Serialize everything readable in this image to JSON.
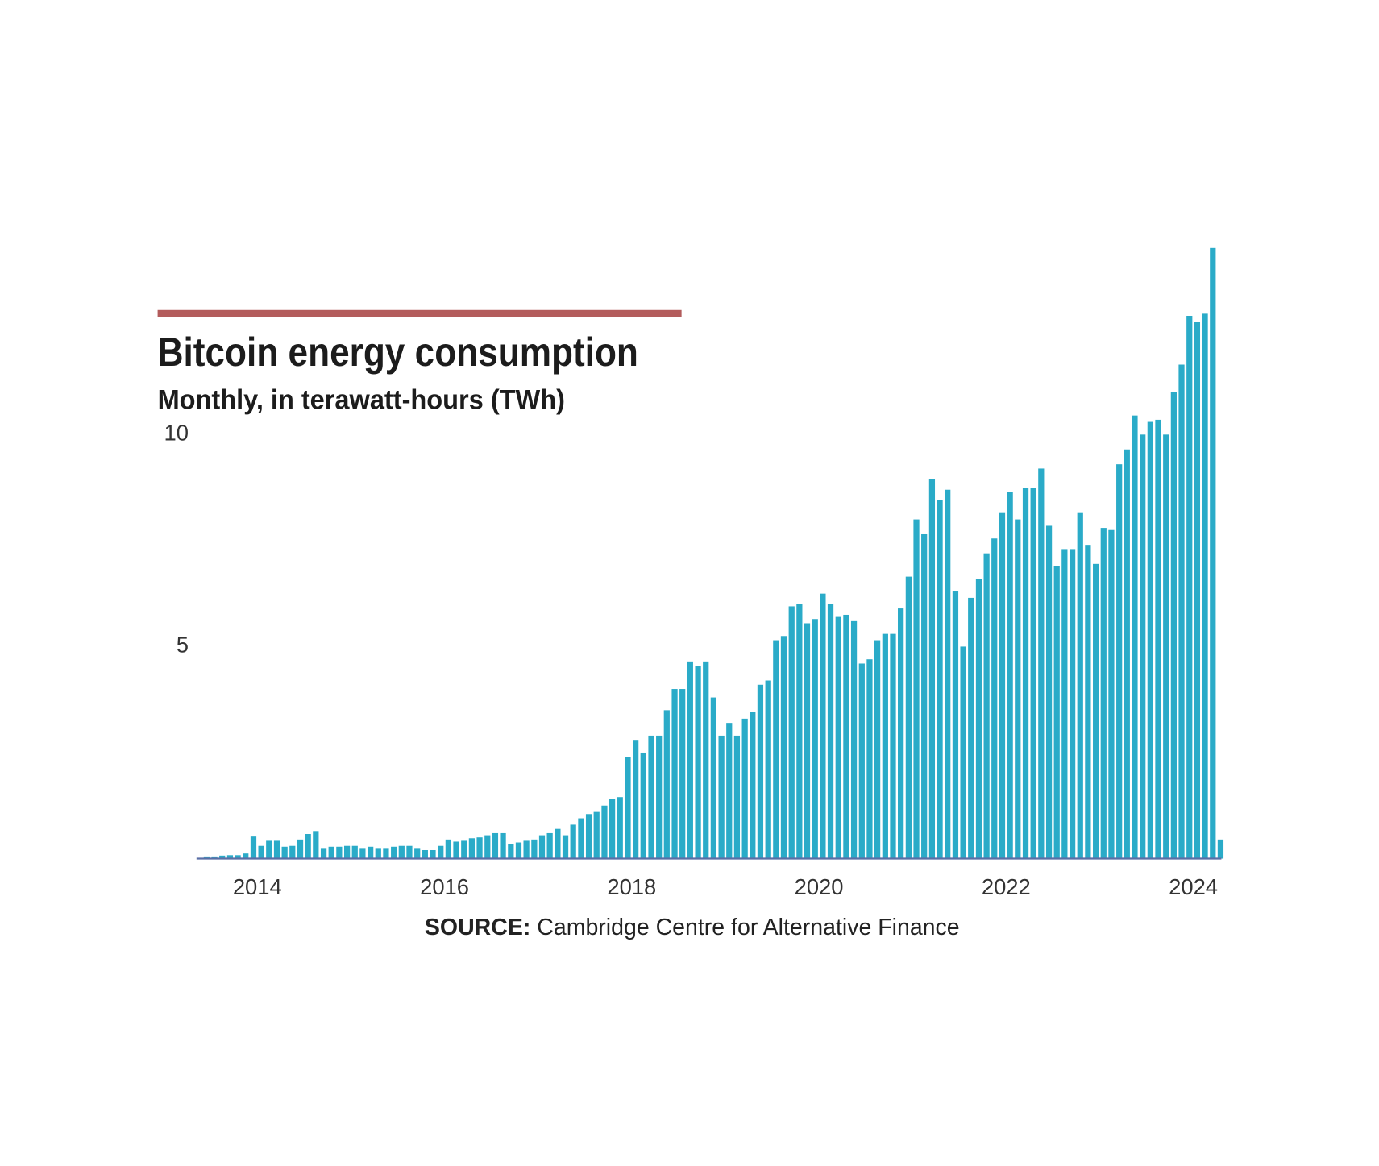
{
  "chart_data": {
    "type": "bar",
    "title": "Bitcoin energy consumption",
    "subtitle": "Monthly, in terawatt-hours (TWh)",
    "source_label": "SOURCE:",
    "source": "Cambridge Centre for Alternative Finance",
    "color": "#2aabc8",
    "x": [
      2013.417,
      2013.5,
      2013.583,
      2013.667,
      2013.75,
      2013.833,
      2013.917,
      2014,
      2014.083,
      2014.167,
      2014.25,
      2014.333,
      2014.417,
      2014.5,
      2014.583,
      2014.667,
      2014.75,
      2014.833,
      2014.917,
      2015,
      2015.083,
      2015.167,
      2015.25,
      2015.333,
      2015.417,
      2015.5,
      2015.583,
      2015.667,
      2015.75,
      2015.833,
      2015.917,
      2016,
      2016.083,
      2016.167,
      2016.25,
      2016.333,
      2016.417,
      2016.5,
      2016.583,
      2016.667,
      2016.75,
      2016.833,
      2016.917,
      2017,
      2017.083,
      2017.167,
      2017.25,
      2017.333,
      2017.417,
      2017.5,
      2017.583,
      2017.667,
      2017.75,
      2017.833,
      2017.917,
      2018,
      2018.083,
      2018.167,
      2018.25,
      2018.333,
      2018.417,
      2018.5,
      2018.583,
      2018.667,
      2018.75,
      2018.833,
      2018.917,
      2019,
      2019.083,
      2019.167,
      2019.25,
      2019.333,
      2019.417,
      2019.5,
      2019.583,
      2019.667,
      2019.75,
      2019.833,
      2019.917,
      2020,
      2020.083,
      2020.167,
      2020.25,
      2020.333,
      2020.417,
      2020.5,
      2020.583,
      2020.667,
      2020.75,
      2020.833,
      2020.917,
      2021,
      2021.083,
      2021.167,
      2021.25,
      2021.333,
      2021.417,
      2021.5,
      2021.583,
      2021.667,
      2021.75,
      2021.833,
      2021.917,
      2022,
      2022.083,
      2022.167,
      2022.25,
      2022.333,
      2022.417,
      2022.5,
      2022.583,
      2022.667,
      2022.75,
      2022.833,
      2022.917,
      2023,
      2023.083,
      2023.167,
      2023.25,
      2023.333,
      2023.417,
      2023.5,
      2023.583,
      2023.667,
      2023.75,
      2023.833,
      2023.917,
      2024,
      2024.083,
      2024.167,
      2024.25
    ],
    "values": [
      0.05,
      0.05,
      0.07,
      0.08,
      0.08,
      0.12,
      0.52,
      0.3,
      0.42,
      0.42,
      0.28,
      0.3,
      0.45,
      0.58,
      0.65,
      0.25,
      0.28,
      0.28,
      0.3,
      0.3,
      0.25,
      0.28,
      0.25,
      0.25,
      0.28,
      0.3,
      0.3,
      0.25,
      0.2,
      0.2,
      0.3,
      0.45,
      0.4,
      0.42,
      0.48,
      0.5,
      0.55,
      0.6,
      0.6,
      0.35,
      0.38,
      0.42,
      0.45,
      0.55,
      0.6,
      0.7,
      0.55,
      0.8,
      0.95,
      1.05,
      1.1,
      1.25,
      1.4,
      1.45,
      2.4,
      2.8,
      2.5,
      2.9,
      2.9,
      3.5,
      4.0,
      4.0,
      4.65,
      4.55,
      4.65,
      3.8,
      2.9,
      3.2,
      2.9,
      3.3,
      3.45,
      4.1,
      4.2,
      5.15,
      5.25,
      5.95,
      6.0,
      5.55,
      5.65,
      6.25,
      6.0,
      5.7,
      5.75,
      5.6,
      4.6,
      4.7,
      5.15,
      5.3,
      5.3,
      5.9,
      6.65,
      8.0,
      7.65,
      8.95,
      8.45,
      8.7,
      6.3,
      5.0,
      6.15,
      6.6,
      7.2,
      7.55,
      8.15,
      8.65,
      8.0,
      8.75,
      8.75,
      9.2,
      7.85,
      6.9,
      7.3,
      7.3,
      8.15,
      7.4,
      6.95,
      7.8,
      7.75,
      9.3,
      9.65,
      10.45,
      10.0,
      10.3,
      10.35,
      10.0,
      11.0,
      11.65,
      12.8,
      12.65,
      12.85,
      14.4,
      0.45
    ],
    "xlim": [
      2013.35,
      2024.3
    ],
    "xticks": [
      2014,
      2016,
      2018,
      2020,
      2022,
      2024
    ],
    "ylim": [
      0,
      15
    ],
    "yticks": [
      5,
      10
    ],
    "grid": false
  }
}
